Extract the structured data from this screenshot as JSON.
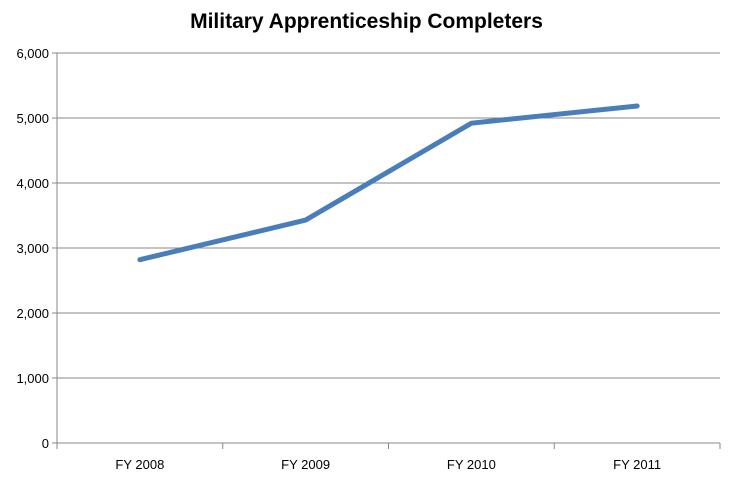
{
  "chart_data": {
    "type": "line",
    "title": "Military Apprenticeship Completers",
    "categories": [
      "FY 2008",
      "FY 2009",
      "FY 2010",
      "FY 2011"
    ],
    "values": [
      2820,
      3430,
      4920,
      5185
    ],
    "ylim": [
      0,
      6000
    ],
    "yticks": [
      0,
      1000,
      2000,
      3000,
      4000,
      5000,
      6000
    ],
    "ytick_labels": [
      "0",
      "1,000",
      "2,000",
      "3,000",
      "4,000",
      "5,000",
      "6,000"
    ],
    "grid": true,
    "line_color": "#4a7ebb",
    "legend": "none"
  }
}
